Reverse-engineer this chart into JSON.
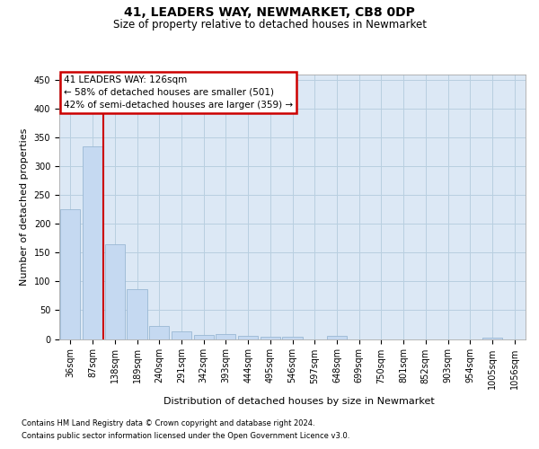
{
  "title": "41, LEADERS WAY, NEWMARKET, CB8 0DP",
  "subtitle": "Size of property relative to detached houses in Newmarket",
  "xlabel": "Distribution of detached houses by size in Newmarket",
  "ylabel": "Number of detached properties",
  "footnote1": "Contains HM Land Registry data © Crown copyright and database right 2024.",
  "footnote2": "Contains public sector information licensed under the Open Government Licence v3.0.",
  "categories": [
    "36sqm",
    "87sqm",
    "138sqm",
    "189sqm",
    "240sqm",
    "291sqm",
    "342sqm",
    "393sqm",
    "444sqm",
    "495sqm",
    "546sqm",
    "597sqm",
    "648sqm",
    "699sqm",
    "750sqm",
    "801sqm",
    "852sqm",
    "903sqm",
    "954sqm",
    "1005sqm",
    "1056sqm"
  ],
  "values": [
    225,
    335,
    165,
    87,
    22,
    14,
    7,
    8,
    5,
    4,
    4,
    0,
    5,
    0,
    0,
    0,
    0,
    0,
    0,
    3,
    0
  ],
  "bar_color": "#c5d9f1",
  "bar_edge_color": "#9ab8d4",
  "plot_bg_color": "#dce8f5",
  "background_color": "#ffffff",
  "grid_color": "#b8cfe0",
  "red_line_x": 2.0,
  "red_line_color": "#cc0000",
  "annotation_line1": "41 LEADERS WAY: 126sqm",
  "annotation_line2": "← 58% of detached houses are smaller (501)",
  "annotation_line3": "42% of semi-detached houses are larger (359) →",
  "annotation_box_facecolor": "#ffffff",
  "annotation_box_edgecolor": "#cc0000",
  "ylim": [
    0,
    460
  ],
  "yticks": [
    0,
    50,
    100,
    150,
    200,
    250,
    300,
    350,
    400,
    450
  ],
  "title_fontsize": 10,
  "subtitle_fontsize": 8.5,
  "tick_fontsize": 7,
  "axis_label_fontsize": 8,
  "annotation_fontsize": 7.5,
  "footnote_fontsize": 6
}
